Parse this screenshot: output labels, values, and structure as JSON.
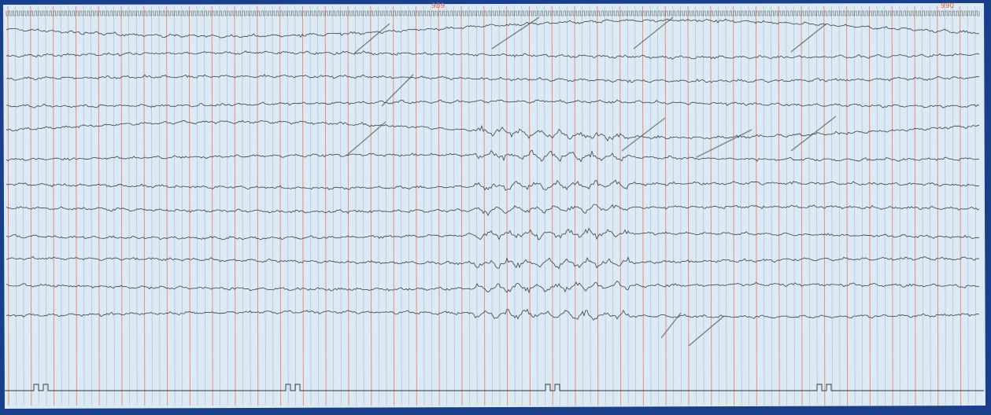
{
  "header": {
    "page_labels": [
      "989",
      "990"
    ]
  }
}
